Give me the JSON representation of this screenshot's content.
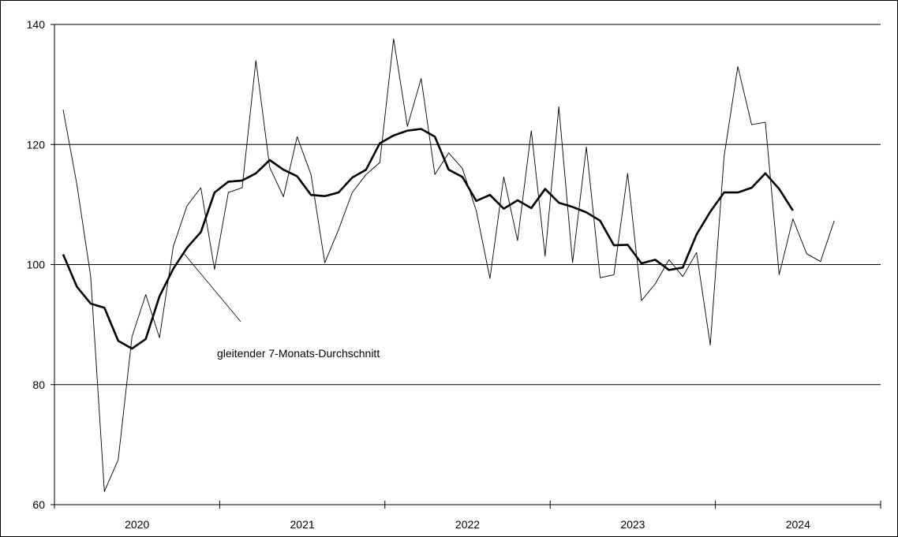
{
  "chart_data": {
    "type": "line",
    "x": [
      "2020-01",
      "2020-02",
      "2020-03",
      "2020-04",
      "2020-05",
      "2020-06",
      "2020-07",
      "2020-08",
      "2020-09",
      "2020-10",
      "2020-11",
      "2020-12",
      "2021-01",
      "2021-02",
      "2021-03",
      "2021-04",
      "2021-05",
      "2021-06",
      "2021-07",
      "2021-08",
      "2021-09",
      "2021-10",
      "2021-11",
      "2021-12",
      "2022-01",
      "2022-02",
      "2022-03",
      "2022-04",
      "2022-05",
      "2022-06",
      "2022-07",
      "2022-08",
      "2022-09",
      "2022-10",
      "2022-11",
      "2022-12",
      "2023-01",
      "2023-02",
      "2023-03",
      "2023-04",
      "2023-05",
      "2023-06",
      "2023-07",
      "2023-08",
      "2023-09",
      "2023-10",
      "2023-11",
      "2023-12",
      "2024-01",
      "2024-02",
      "2024-03",
      "2024-04",
      "2024-05",
      "2024-06",
      "2024-07",
      "2024-08",
      "2024-09"
    ],
    "x_tick_labels": [
      "2020",
      "2021",
      "2022",
      "2023",
      "2024"
    ],
    "ylim": [
      60,
      140
    ],
    "yticks": [
      60,
      80,
      100,
      120,
      140
    ],
    "grid": "horizontal",
    "annotation": "gleitender 7-Monats-Durchschnitt",
    "series": [
      {
        "style": "thin",
        "values": [
          125.8,
          113.3,
          98.0,
          62.2,
          67.5,
          88.0,
          95.0,
          87.8,
          103.0,
          109.8,
          112.8,
          99.2,
          112.0,
          112.8,
          134.0,
          116.2,
          111.3,
          121.3,
          115.0,
          100.3,
          105.8,
          112.0,
          115.0,
          117.0,
          137.6,
          123.0,
          131.0,
          115.0,
          118.6,
          116.0,
          109.0,
          97.7,
          114.6,
          104.0,
          122.3,
          101.4,
          126.3,
          100.3,
          119.6,
          97.8,
          98.3,
          115.2,
          94.0,
          96.8,
          100.8,
          98.0,
          102.0,
          86.6,
          118.0,
          133.0,
          123.3,
          123.7,
          98.3,
          107.6,
          101.8,
          100.5,
          107.3
        ]
      },
      {
        "style": "thick",
        "values": [
          101.7,
          96.3,
          93.5,
          92.8,
          87.3,
          86.0,
          87.6,
          94.7,
          99.3,
          102.8,
          105.4,
          112.0,
          113.8,
          114.0,
          115.2,
          117.4,
          115.8,
          114.7,
          111.6,
          111.4,
          112.0,
          114.5,
          115.8,
          120.2,
          121.5,
          122.3,
          122.6,
          121.3,
          115.8,
          114.6,
          110.6,
          111.6,
          109.3,
          110.7,
          109.4,
          112.6,
          110.3,
          109.6,
          108.7,
          107.3,
          103.2,
          103.3,
          100.2,
          100.8,
          99.1,
          99.5,
          105.0,
          108.8,
          112.0,
          112.0,
          112.8,
          115.2,
          112.6,
          109.0,
          null,
          null,
          null
        ]
      }
    ]
  }
}
